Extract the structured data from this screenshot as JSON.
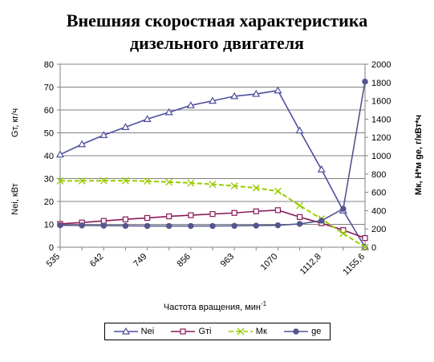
{
  "title_line1": "Внешняя скоростная характеристика",
  "title_line2": "дизельного двигателя",
  "chart_data": {
    "type": "line",
    "title": "Внешняя скоростная характеристика дизельного двигателя",
    "xlabel": "Частота вращения, мин",
    "xlabel_sup": "-1",
    "ylabel_left_top": "Gт, кг/ч",
    "ylabel_left_bottom": "Nei, кВт",
    "ylabel_right": "Mк, Н*м     ge, г/кВт*ч",
    "yleft_lim": [
      0,
      80
    ],
    "yleft_ticks": [
      "0",
      "10",
      "20",
      "30",
      "40",
      "50",
      "60",
      "70",
      "80"
    ],
    "yright_lim": [
      0,
      2000
    ],
    "yright_ticks": [
      "0",
      "200",
      "400",
      "600",
      "800",
      "1000",
      "1200",
      "1400",
      "1600",
      "1800",
      "2000"
    ],
    "x_tick_labels": [
      "535",
      "642",
      "749",
      "856",
      "963",
      "1070",
      "1112,8",
      "1155,6"
    ],
    "grid": "horizontal",
    "legend_position": "bottom",
    "series": [
      {
        "name": "Nei",
        "axis": "left",
        "color": "#4F4F9F",
        "marker": "triangle",
        "values": [
          40.5,
          45,
          49,
          52.5,
          56,
          59,
          62,
          64,
          66,
          67,
          68.5,
          51,
          34,
          16,
          0
        ]
      },
      {
        "name": "Gтi",
        "axis": "left",
        "color": "#8B1A5A",
        "marker": "square",
        "values": [
          10.2,
          10.8,
          11.5,
          12.2,
          12.8,
          13.5,
          14,
          14.5,
          15,
          15.7,
          16.2,
          13.2,
          10.5,
          7.5,
          4
        ]
      },
      {
        "name": "Mк",
        "axis": "right",
        "color": "#99CC00",
        "marker": "x",
        "values": [
          725,
          725,
          727,
          727,
          722,
          712,
          702,
          688,
          670,
          648,
          612,
          455,
          310,
          150,
          0
        ]
      },
      {
        "name": "ge",
        "axis": "right",
        "color": "#55558F",
        "marker": "circle",
        "values": [
          240,
          238,
          236,
          234,
          232,
          232,
          232,
          232,
          234,
          236,
          240,
          255,
          290,
          420,
          1810
        ]
      }
    ]
  }
}
